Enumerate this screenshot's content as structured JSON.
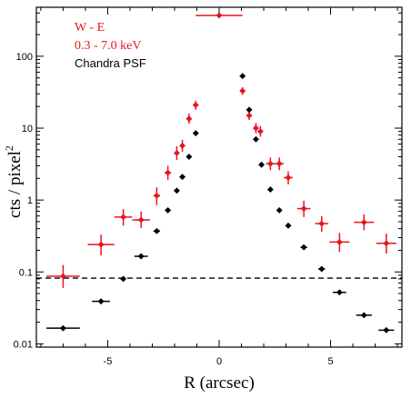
{
  "chart_data": {
    "type": "scatter",
    "xlabel": "R (arcsec)",
    "ylabel": "cts / pixel",
    "ylabel_superscript": "2",
    "xlim": [
      -8.2,
      8.2
    ],
    "ylim": [
      0.009,
      480
    ],
    "yscale": "log",
    "xticks": [
      -5,
      0,
      5
    ],
    "xtick_labels": [
      "-5",
      "0",
      "5"
    ],
    "yticks": [
      0.01,
      0.1,
      1,
      10,
      100
    ],
    "ytick_labels": [
      "0.01",
      "0.1",
      "1",
      "10",
      "100"
    ],
    "grid": false,
    "reference_line": {
      "y": 0.082,
      "style": "dashed",
      "color": "#000000"
    },
    "legend": {
      "placement": "top-left",
      "entries": [
        {
          "text": "W - E",
          "color": "#e8141b"
        },
        {
          "text": "0.3 - 7.0 keV",
          "color": "#e8141b"
        },
        {
          "text": "Chandra PSF",
          "color": "#000000"
        }
      ]
    },
    "series": [
      {
        "color": "#e8141b",
        "marker": "cross",
        "points": [
          {
            "x": -7.0,
            "y": 0.087,
            "xerr": 0.75,
            "ylo": 0.06,
            "yhi": 0.125
          },
          {
            "x": -5.3,
            "y": 0.24,
            "xerr": 0.6,
            "ylo": 0.17,
            "yhi": 0.33
          },
          {
            "x": -4.3,
            "y": 0.58,
            "xerr": 0.4,
            "ylo": 0.44,
            "yhi": 0.75
          },
          {
            "x": -3.5,
            "y": 0.53,
            "xerr": 0.4,
            "ylo": 0.41,
            "yhi": 0.69
          },
          {
            "x": -2.8,
            "y": 1.15,
            "xerr": 0.15,
            "ylo": 0.85,
            "yhi": 1.5
          },
          {
            "x": -2.3,
            "y": 2.4,
            "xerr": 0.15,
            "ylo": 1.9,
            "yhi": 3.0
          },
          {
            "x": -1.9,
            "y": 4.5,
            "xerr": 0.1,
            "ylo": 3.6,
            "yhi": 5.6
          },
          {
            "x": -1.65,
            "y": 5.7,
            "xerr": 0.1,
            "ylo": 4.7,
            "yhi": 6.9
          },
          {
            "x": -1.35,
            "y": 13.5,
            "xerr": 0.1,
            "ylo": 11.5,
            "yhi": 16
          },
          {
            "x": -1.05,
            "y": 21,
            "xerr": 0.1,
            "ylo": 18,
            "yhi": 24
          },
          {
            "x": 0,
            "y": 370,
            "xerr": 1.05,
            "ylo": 340,
            "yhi": 400
          },
          {
            "x": 1.05,
            "y": 33,
            "xerr": 0.1,
            "ylo": 29,
            "yhi": 37
          },
          {
            "x": 1.35,
            "y": 15,
            "xerr": 0.1,
            "ylo": 13,
            "yhi": 17.5
          },
          {
            "x": 1.65,
            "y": 10,
            "xerr": 0.1,
            "ylo": 8.5,
            "yhi": 11.8
          },
          {
            "x": 1.85,
            "y": 9.0,
            "xerr": 0.1,
            "ylo": 7.6,
            "yhi": 10.7
          },
          {
            "x": 2.3,
            "y": 3.2,
            "xerr": 0.2,
            "ylo": 2.6,
            "yhi": 3.9
          },
          {
            "x": 2.7,
            "y": 3.2,
            "xerr": 0.2,
            "ylo": 2.6,
            "yhi": 3.9
          },
          {
            "x": 3.1,
            "y": 2.05,
            "xerr": 0.2,
            "ylo": 1.65,
            "yhi": 2.5
          },
          {
            "x": 3.8,
            "y": 0.76,
            "xerr": 0.3,
            "ylo": 0.58,
            "yhi": 0.98
          },
          {
            "x": 4.6,
            "y": 0.47,
            "xerr": 0.3,
            "ylo": 0.36,
            "yhi": 0.6
          },
          {
            "x": 5.4,
            "y": 0.26,
            "xerr": 0.45,
            "ylo": 0.19,
            "yhi": 0.35
          },
          {
            "x": 6.5,
            "y": 0.49,
            "xerr": 0.45,
            "ylo": 0.38,
            "yhi": 0.63
          },
          {
            "x": 7.5,
            "y": 0.25,
            "xerr": 0.45,
            "ylo": 0.18,
            "yhi": 0.34
          }
        ]
      },
      {
        "color": "#000000",
        "marker": "diamond",
        "points": [
          {
            "x": -7.0,
            "y": 0.0165,
            "xerr": 0.75
          },
          {
            "x": -5.3,
            "y": 0.039,
            "xerr": 0.4
          },
          {
            "x": -4.3,
            "y": 0.08,
            "xerr": 0.12
          },
          {
            "x": -3.5,
            "y": 0.165,
            "xerr": 0.3
          },
          {
            "x": -2.8,
            "y": 0.37,
            "xerr": 0.15
          },
          {
            "x": -2.3,
            "y": 0.72,
            "xerr": 0.12
          },
          {
            "x": -1.9,
            "y": 1.35,
            "xerr": 0.08
          },
          {
            "x": -1.65,
            "y": 2.1,
            "xerr": 0.06
          },
          {
            "x": -1.35,
            "y": 4.0,
            "xerr": 0.06
          },
          {
            "x": -1.05,
            "y": 8.5,
            "xerr": 0.06
          },
          {
            "x": 1.05,
            "y": 53,
            "xerr": 0.06
          },
          {
            "x": 1.35,
            "y": 18,
            "xerr": 0.06
          },
          {
            "x": 1.65,
            "y": 7.0,
            "xerr": 0.06
          },
          {
            "x": 1.9,
            "y": 3.1,
            "xerr": 0.06
          },
          {
            "x": 2.3,
            "y": 1.4,
            "xerr": 0.08
          },
          {
            "x": 2.7,
            "y": 0.72,
            "xerr": 0.1
          },
          {
            "x": 3.1,
            "y": 0.44,
            "xerr": 0.12
          },
          {
            "x": 3.8,
            "y": 0.22,
            "xerr": 0.15
          },
          {
            "x": 4.6,
            "y": 0.11,
            "xerr": 0.15
          },
          {
            "x": 5.4,
            "y": 0.052,
            "xerr": 0.3
          },
          {
            "x": 6.5,
            "y": 0.025,
            "xerr": 0.35
          },
          {
            "x": 7.5,
            "y": 0.0155,
            "xerr": 0.35
          }
        ]
      }
    ]
  }
}
